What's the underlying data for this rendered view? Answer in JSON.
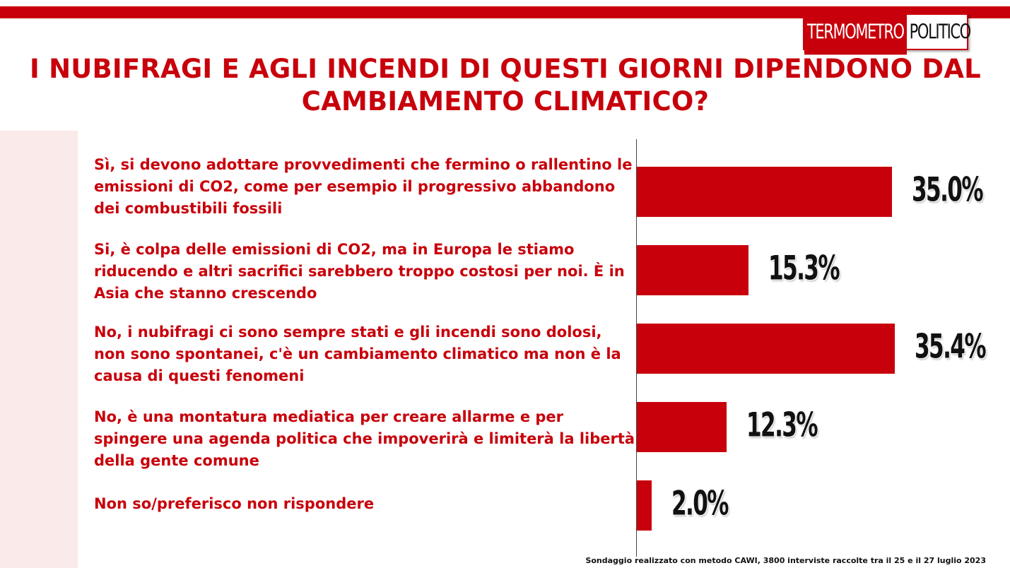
{
  "brand": {
    "part1": "TERMOMETRO",
    "part2": "POLITICO",
    "accent_color": "#c8000b"
  },
  "chart_data": {
    "type": "bar",
    "orientation": "horizontal",
    "title": "I NUBIFRAGI E AGLI INCENDI DI QUESTI GIORNI DIPENDONO DAL CAMBIAMENTO CLIMATICO?",
    "categories": [
      "Sì, si devono adottare provvedimenti che fermino o rallentino le emissioni di CO2, come per esempio il progressivo abbandono dei combustibili fossili",
      "Si, è colpa delle emissioni di CO2, ma in Europa le stiamo riducendo e altri sacrifici sarebbero troppo costosi per noi. È in Asia che stanno crescendo",
      "No, i nubifragi ci sono sempre stati e gli incendi sono dolosi, non sono spontanei, c'è un cambiamento climatico ma non è la causa di questi fenomeni",
      "No, è una montatura mediatica per creare allarme e per spingere una agenda politica che impoverirà e limiterà la libertà della gente comune",
      "Non so/preferisco non rispondere"
    ],
    "values": [
      35.0,
      15.3,
      35.4,
      12.3,
      2.0
    ],
    "value_labels": [
      "35.0%",
      "15.3%",
      "35.4%",
      "12.3%",
      "2.0%"
    ],
    "xlim": [
      0,
      40
    ],
    "bar_color": "#c8000b",
    "grid": false
  },
  "footnote": "Sondaggio realizzato con metodo CAWI, 3800 interviste raccolte tra il 25 e il 27 luglio 2023"
}
